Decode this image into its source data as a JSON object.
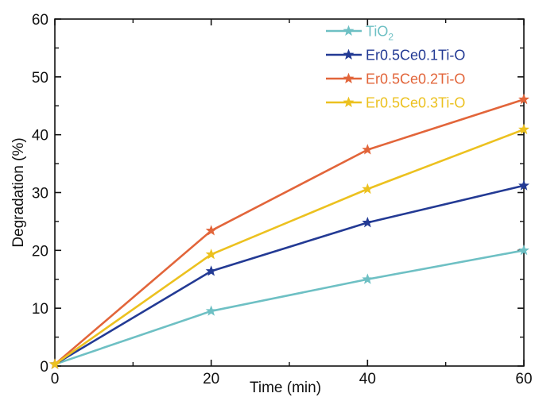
{
  "chart_data": {
    "type": "line",
    "xlabel": "Time (min)",
    "ylabel": "Degradation (%)",
    "xlim": [
      0,
      60
    ],
    "ylim": [
      0,
      60
    ],
    "xticks": [
      0,
      20,
      40,
      60
    ],
    "yticks": [
      0,
      10,
      20,
      30,
      40,
      50,
      60
    ],
    "x": [
      0,
      20,
      40,
      60
    ],
    "grid": false,
    "legend_position": "top-right",
    "marker": "star",
    "series": [
      {
        "name": "TiO",
        "name_subscript": "2",
        "color": "#6ec0c4",
        "values": [
          0.3,
          9.5,
          15.0,
          20.0
        ]
      },
      {
        "name": "Er0.5Ce0.1Ti-O",
        "color": "#233a94",
        "values": [
          0.3,
          16.4,
          24.8,
          31.2
        ]
      },
      {
        "name": "Er0.5Ce0.2Ti-O",
        "color": "#e2653a",
        "values": [
          0.3,
          23.4,
          37.4,
          46.1
        ]
      },
      {
        "name": "Er0.5Ce0.3Ti-O",
        "color": "#ecc11f",
        "values": [
          0.3,
          19.3,
          30.6,
          40.9
        ]
      }
    ]
  }
}
